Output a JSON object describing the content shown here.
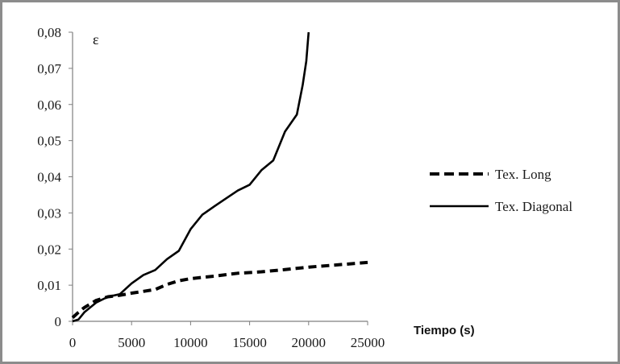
{
  "chart_data": {
    "type": "line",
    "title": "",
    "xlabel": "Tiempo (s)",
    "ylabel": "ε",
    "xlim": [
      0,
      25000
    ],
    "ylim": [
      0,
      0.08
    ],
    "x_ticks": [
      0,
      5000,
      10000,
      15000,
      20000,
      25000
    ],
    "x_tick_labels": [
      "0",
      "5000",
      "10000",
      "15000",
      "20000",
      "25000"
    ],
    "y_ticks": [
      0,
      0.01,
      0.02,
      0.03,
      0.04,
      0.05,
      0.06,
      0.07,
      0.08
    ],
    "y_tick_labels": [
      "0",
      "0,01",
      "0,02",
      "0,03",
      "0,04",
      "0,05",
      "0,06",
      "0,07",
      "0,08"
    ],
    "grid": false,
    "legend_position": "right",
    "series": [
      {
        "name": "Tex. Long",
        "style": "dashed",
        "color": "#000000",
        "x": [
          0,
          500,
          1000,
          2000,
          3000,
          4000,
          5000,
          6000,
          7000,
          8000,
          9000,
          10000,
          12000,
          14000,
          16000,
          18000,
          20000,
          22000,
          25000
        ],
        "y": [
          0.001,
          0.0025,
          0.0038,
          0.0058,
          0.0068,
          0.0072,
          0.0078,
          0.0083,
          0.0088,
          0.0102,
          0.0112,
          0.0118,
          0.0125,
          0.0133,
          0.0137,
          0.0143,
          0.015,
          0.0155,
          0.0163
        ]
      },
      {
        "name": "Tex. Diagonal",
        "style": "solid",
        "color": "#000000",
        "x": [
          0,
          500,
          1000,
          2000,
          3000,
          4000,
          5000,
          6000,
          7000,
          8000,
          9000,
          10000,
          11000,
          12000,
          13000,
          14000,
          15000,
          16000,
          17000,
          18000,
          19000,
          19500,
          19800,
          20000
        ],
        "y": [
          0,
          0.0005,
          0.0025,
          0.0052,
          0.0068,
          0.0075,
          0.0105,
          0.0128,
          0.0142,
          0.0172,
          0.0195,
          0.0255,
          0.0295,
          0.0318,
          0.034,
          0.0362,
          0.0378,
          0.0418,
          0.0445,
          0.0525,
          0.0572,
          0.0655,
          0.072,
          0.08
        ]
      }
    ]
  }
}
